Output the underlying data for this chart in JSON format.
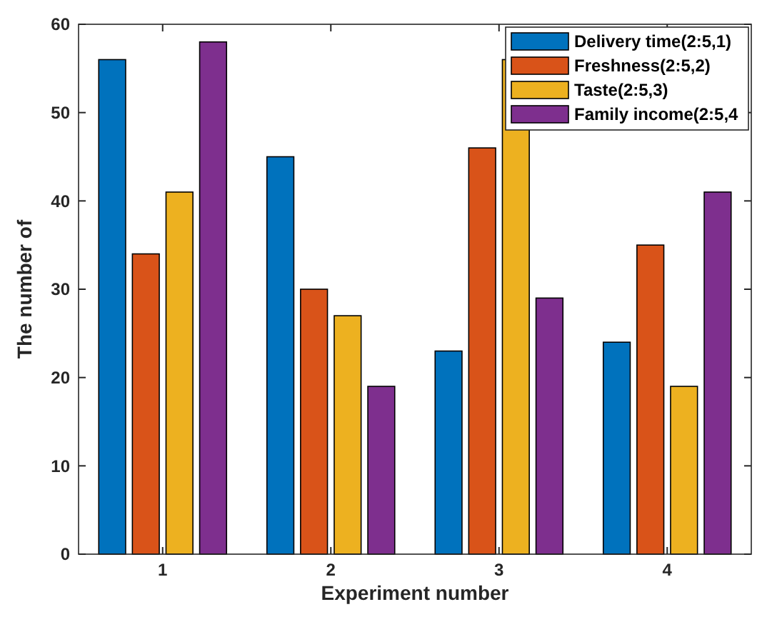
{
  "chart_data": {
    "type": "bar",
    "xlabel": "Experiment number",
    "ylabel": "The number of",
    "categories": [
      "1",
      "2",
      "3",
      "4"
    ],
    "series": [
      {
        "name": "Delivery time(2:5,1)",
        "color": "#0072bd",
        "values": [
          56,
          45,
          23,
          24
        ]
      },
      {
        "name": "Freshness(2:5,2)",
        "color": "#d95319",
        "values": [
          34,
          30,
          46,
          35
        ]
      },
      {
        "name": "Taste(2:5,3)",
        "color": "#edb120",
        "values": [
          41,
          27,
          56,
          19
        ]
      },
      {
        "name": "Family income(2:5,4",
        "color": "#7e2f8e",
        "values": [
          58,
          19,
          29,
          41
        ]
      }
    ],
    "ylim": [
      0,
      60
    ],
    "yticks": [
      0,
      10,
      20,
      30,
      40,
      50,
      60
    ],
    "legend": "top right"
  }
}
